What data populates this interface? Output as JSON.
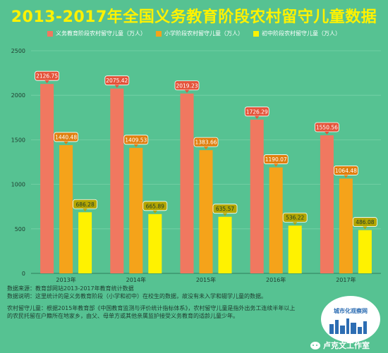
{
  "chart_data": {
    "type": "bar",
    "title": "2013-2017年全国义务教育阶段农村留守儿童数据",
    "categories": [
      "2013年",
      "2014年",
      "2015年",
      "2016年",
      "2017年"
    ],
    "series": [
      {
        "name": "义务教育阶段农村留守儿童（万人）",
        "color": "#f07860",
        "values": [
          2126.75,
          2075.42,
          2019.23,
          1726.29,
          1550.56
        ]
      },
      {
        "name": "小学阶段农村留守儿童（万人）",
        "color": "#f5a31a",
        "values": [
          1440.48,
          1409.53,
          1383.66,
          1190.07,
          1064.48
        ]
      },
      {
        "name": "初中阶段农村留守儿童（万人）",
        "color": "#fff200",
        "values": [
          686.28,
          665.89,
          635.57,
          536.22,
          486.08
        ]
      }
    ],
    "data_labels": [
      [
        "2126.75",
        "2075.42",
        "2019.23",
        "1726.29",
        "1550.56"
      ],
      [
        "1440.48",
        "1409.53",
        "1383.66",
        "1190.07",
        "1064.48"
      ],
      [
        "686.28",
        "665.89",
        "635.57",
        "536.22",
        "486.08"
      ]
    ],
    "y_ticks": [
      "0",
      "500",
      "1000",
      "1500",
      "2000",
      "2500"
    ],
    "ylim": [
      0,
      2500
    ],
    "grid": true,
    "legend_position": "top-center",
    "xlabel": "",
    "ylabel": ""
  },
  "notes": {
    "source": "数据来源：教育部网站2013-2017年教育统计数据",
    "explanation": "数据说明：这里统计的是义务教育阶段（小学和初中）在校生的数据，故没有未入学和辍学儿童的数据。",
    "definition_line1": "农村留守儿童：根据2015年教育部《中国教育监测与评价统计指标体系》，农村留守儿童是指外出务工连续半年以上",
    "definition_line2": "的农民托留在户籍所在地家乡，由父、母单方或其他亲属监护接受义务教育的适龄儿童少年。"
  },
  "badge": {
    "text": "城市化观察网"
  },
  "watermark": {
    "text": "卢克文工作室",
    "icon": "wechat-icon"
  }
}
